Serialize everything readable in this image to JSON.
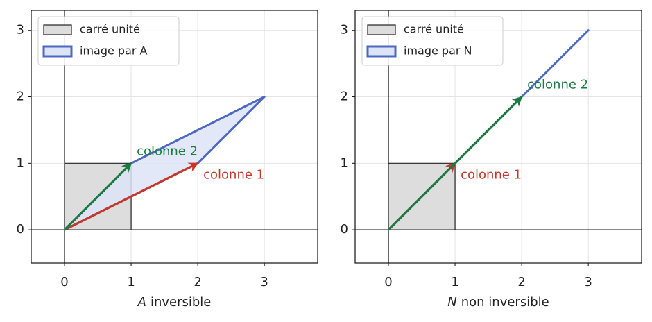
{
  "chart_data": [
    {
      "type": "vector",
      "xlabel_var": "A",
      "xlabel": "inversible",
      "xlim": [
        -0.5,
        3.8
      ],
      "ylim": [
        -0.5,
        3.3
      ],
      "xticks": [
        0,
        1,
        2,
        3
      ],
      "yticks": [
        0,
        1,
        2,
        3
      ],
      "grid": true,
      "legend": "upper left",
      "shapes": [
        {
          "name": "carré unité",
          "color": "#dddddd",
          "edge": "#222222",
          "x": [
            0,
            1,
            1,
            0
          ],
          "y": [
            0,
            0,
            1,
            1
          ]
        },
        {
          "name": "image par A",
          "color": "#dde4f7",
          "edge": "#4c68c0",
          "x": [
            0,
            2,
            3,
            1
          ],
          "y": [
            0,
            1,
            2,
            1
          ]
        }
      ],
      "vectors": [
        {
          "name": "colonne 1",
          "color": "#c0392b",
          "x": 2,
          "y": 1
        },
        {
          "name": "colonne 2",
          "color": "#1a7a40",
          "x": 1,
          "y": 1
        }
      ]
    },
    {
      "type": "vector",
      "xlabel_var": "N",
      "xlabel": "non inversible",
      "xlim": [
        -0.5,
        3.8
      ],
      "ylim": [
        -0.5,
        3.3
      ],
      "xticks": [
        0,
        1,
        2,
        3
      ],
      "yticks": [
        0,
        1,
        2,
        3
      ],
      "grid": true,
      "legend": "upper left",
      "shapes": [
        {
          "name": "carré unité",
          "color": "#dddddd",
          "edge": "#222222",
          "x": [
            0,
            1,
            1,
            0
          ],
          "y": [
            0,
            0,
            1,
            1
          ]
        },
        {
          "name": "image par N",
          "color": "#dde4f7",
          "edge": "#4c68c0",
          "x": [
            0,
            1,
            3,
            2
          ],
          "y": [
            0,
            1,
            3,
            2
          ]
        }
      ],
      "vectors": [
        {
          "name": "colonne 1",
          "color": "#c0392b",
          "x": 1,
          "y": 1
        },
        {
          "name": "colonne 2",
          "color": "#1a7a40",
          "x": 2,
          "y": 2
        }
      ]
    }
  ]
}
